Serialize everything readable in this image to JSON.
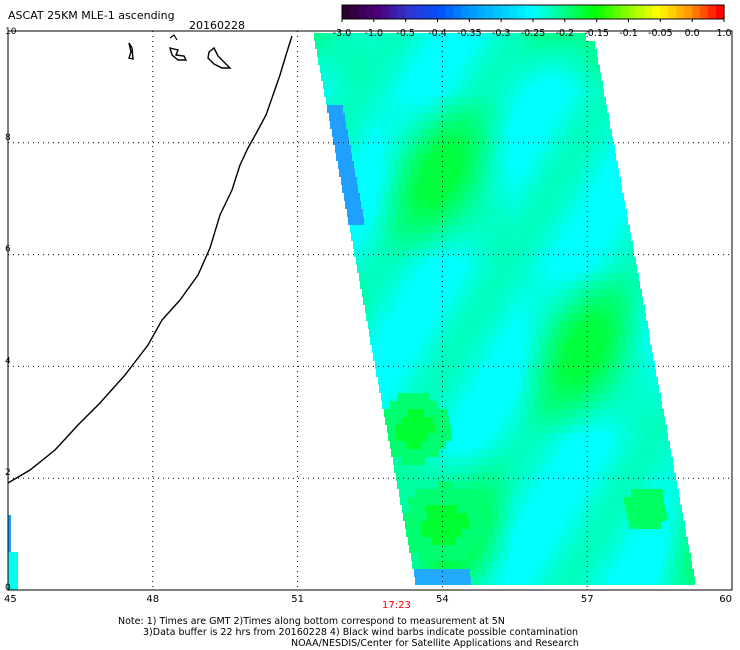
{
  "title": "ASCAT 25KM MLE-1 ascending",
  "date": "20160228",
  "colorbar": {
    "labels": [
      "-3.0",
      "-1.0",
      "-0.5",
      "-0.4",
      "-0.35",
      "-0.3",
      "-0.25",
      "-0.2",
      "-0.15",
      "-0.1",
      "-0.05",
      "0.0",
      "1.0"
    ],
    "colors": [
      "#2b0030",
      "#4a0077",
      "#3333cc",
      "#0050ff",
      "#0099ff",
      "#00ccff",
      "#00ffff",
      "#00ff88",
      "#00ff00",
      "#88ff00",
      "#ffff00",
      "#ff9900",
      "#ff0000"
    ]
  },
  "axes": {
    "x_ticks": [
      "45",
      "48",
      "51",
      "54",
      "57",
      "60"
    ],
    "y_ticks": [
      "0",
      "2",
      "4",
      "6",
      "8",
      "10"
    ]
  },
  "time_label": "17:23",
  "notes": [
    "Note: 1) Times are GMT 2)Times along bottom correspond to measurement at 5N",
    "3)Data buffer is 22 hrs from 20160228 4) Black wind barbs indicate possible contamination",
    "NOAA/NESDIS/Center for Satellite Applications and Research"
  ],
  "colors": {
    "coastline": "#000000",
    "grid": "#000000",
    "time_label": "#ff0000"
  }
}
